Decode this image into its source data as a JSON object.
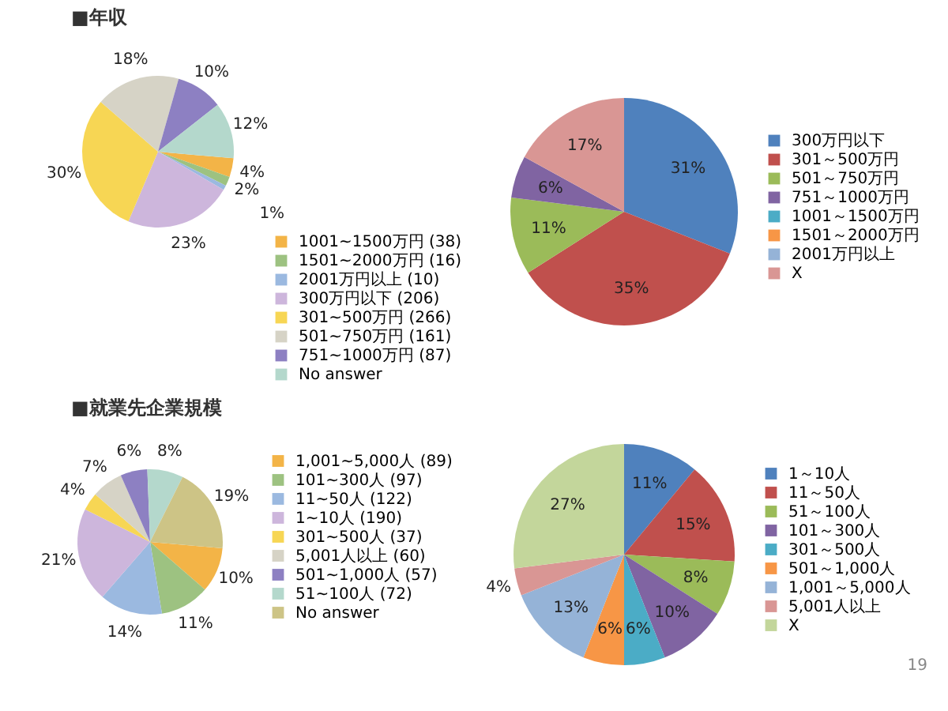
{
  "chart_data": [
    {
      "type": "pie",
      "title": "■年収",
      "categories": [
        "1001~1500万円 (38)",
        "1501~2000万円 (16)",
        "2001万円以上 (10)",
        "300万円以下 (206)",
        "301~500万円 (266)",
        "501~750万円 (161)",
        "751~1000万円 (87)",
        "No answer"
      ],
      "values": [
        4,
        2,
        1,
        23,
        30,
        18,
        10,
        12
      ],
      "value_labels": [
        "4%",
        "2%",
        "1%",
        "23%",
        "30%",
        "18%",
        "10%",
        "12%"
      ],
      "colors": [
        "#f3b447",
        "#9dc281",
        "#9bb9e0",
        "#cdb6dc",
        "#f7d654",
        "#d6d3c6",
        "#8d80c2",
        "#b4d8cc"
      ],
      "legend": "bottom right"
    },
    {
      "type": "pie",
      "categories": [
        "300万円以下",
        "301～500万円",
        "501～750万円",
        "751～1000万円",
        "1001～1500万円",
        "1501～2000万円",
        "2001万円以上",
        "X"
      ],
      "values": [
        31,
        35,
        11,
        6,
        0,
        0,
        0,
        17
      ],
      "value_labels": [
        "31%",
        "35%",
        "11%",
        "6%",
        null,
        null,
        null,
        "17%"
      ],
      "colors": [
        "#4f81bd",
        "#c0504d",
        "#9bbb59",
        "#8064a2",
        "#4bacc6",
        "#f79646",
        "#95b3d7",
        "#d99694"
      ],
      "legend": "right"
    },
    {
      "type": "pie",
      "title": "■就業先企業規模",
      "categories": [
        "1,001~5,000人 (89)",
        "101~300人 (97)",
        "11~50人 (122)",
        "1~10人 (190)",
        "301~500人 (37)",
        "5,001人以上 (60)",
        "501~1,000人 (57)",
        "51~100人 (72)",
        "No answer"
      ],
      "values": [
        10,
        11,
        14,
        21,
        4,
        7,
        6,
        8,
        19
      ],
      "value_labels": [
        "10%",
        "11%",
        "14%",
        "21%",
        "4%",
        "7%",
        "6%",
        "8%",
        "19%"
      ],
      "colors": [
        "#f3b447",
        "#9dc281",
        "#9bb9e0",
        "#cdb6dc",
        "#f7d654",
        "#d6d3c6",
        "#8d80c2",
        "#b4d8cc",
        "#cdc486"
      ],
      "legend": "right"
    },
    {
      "type": "pie",
      "categories": [
        "1～10人",
        "11～50人",
        "51～100人",
        "101～300人",
        "301～500人",
        "501～1,000人",
        "1,001～5,000人",
        "5,001人以上",
        "X"
      ],
      "values": [
        11,
        15,
        8,
        10,
        6,
        6,
        13,
        4,
        27
      ],
      "value_labels": [
        "11%",
        "15%",
        "8%",
        "10%",
        "6%",
        "6%",
        "13%",
        "4%",
        "27%"
      ],
      "colors": [
        "#4f81bd",
        "#c0504d",
        "#9bbb59",
        "#8064a2",
        "#4bacc6",
        "#f79646",
        "#95b3d7",
        "#d99694",
        "#c3d69b"
      ],
      "legend": "right",
      "annotations": [
        "19"
      ]
    }
  ]
}
